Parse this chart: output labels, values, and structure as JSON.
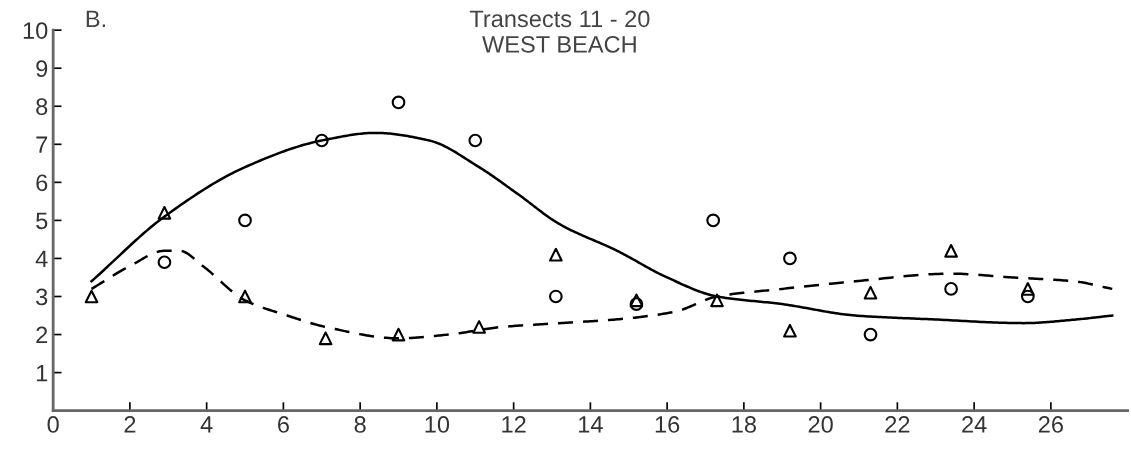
{
  "chart_data": {
    "type": "scatter",
    "title": "Transects 11 - 20",
    "subtitle": "WEST BEACH",
    "annotations": [
      "B."
    ],
    "xlim": [
      0,
      28
    ],
    "ylim": [
      0,
      10
    ],
    "xticks": [
      0,
      2,
      4,
      6,
      8,
      10,
      12,
      14,
      16,
      18,
      20,
      22,
      24,
      26
    ],
    "yticks": [
      1,
      2,
      3,
      4,
      5,
      6,
      7,
      8,
      9,
      10
    ],
    "grid": false,
    "legend": false,
    "series": [
      {
        "marker": "circle",
        "color": "#000000",
        "x": [
          2.9,
          5.0,
          7.0,
          9.0,
          11.0,
          13.1,
          15.2,
          17.2,
          19.2,
          21.3,
          23.4,
          25.4
        ],
        "values": [
          3.9,
          5.0,
          7.1,
          8.1,
          7.1,
          3.0,
          2.8,
          5.0,
          4.0,
          2.0,
          3.2,
          3.0
        ]
      },
      {
        "marker": "triangle",
        "color": "#000000",
        "x": [
          1.0,
          2.9,
          5.0,
          7.1,
          9.0,
          11.1,
          13.1,
          15.2,
          17.3,
          19.2,
          21.3,
          23.4,
          25.4
        ],
        "values": [
          3.0,
          5.2,
          3.0,
          1.9,
          2.0,
          2.2,
          4.1,
          2.9,
          2.9,
          2.1,
          3.1,
          4.2,
          3.2
        ]
      },
      {
        "type": "line",
        "line_style": "solid",
        "marker": "none",
        "color": "#000000",
        "x": [
          1.0,
          2.9,
          5.0,
          7.0,
          8.4,
          9.8,
          11.1,
          12.1,
          13.2,
          14.7,
          16.0,
          17.3,
          19.0,
          20.9,
          22.9,
          25.3,
          26.7,
          27.6
        ],
        "values": [
          3.4,
          5.1,
          6.4,
          7.1,
          7.3,
          7.1,
          6.4,
          5.7,
          4.9,
          4.2,
          3.5,
          3.0,
          2.8,
          2.5,
          2.4,
          2.3,
          2.4,
          2.5
        ]
      },
      {
        "type": "line",
        "line_style": "dashed",
        "marker": "none",
        "color": "#000000",
        "x": [
          1.0,
          2.0,
          2.9,
          3.3,
          3.9,
          5.0,
          6.1,
          7.1,
          9.0,
          10.3,
          11.7,
          13.2,
          14.7,
          16.2,
          17.3,
          19.0,
          20.9,
          23.4,
          25.0,
          26.6,
          27.6
        ],
        "values": [
          3.2,
          3.8,
          4.2,
          4.2,
          3.8,
          2.9,
          2.5,
          2.2,
          1.9,
          2.0,
          2.2,
          2.3,
          2.4,
          2.6,
          3.0,
          3.2,
          3.4,
          3.6,
          3.5,
          3.4,
          3.2
        ]
      }
    ]
  }
}
